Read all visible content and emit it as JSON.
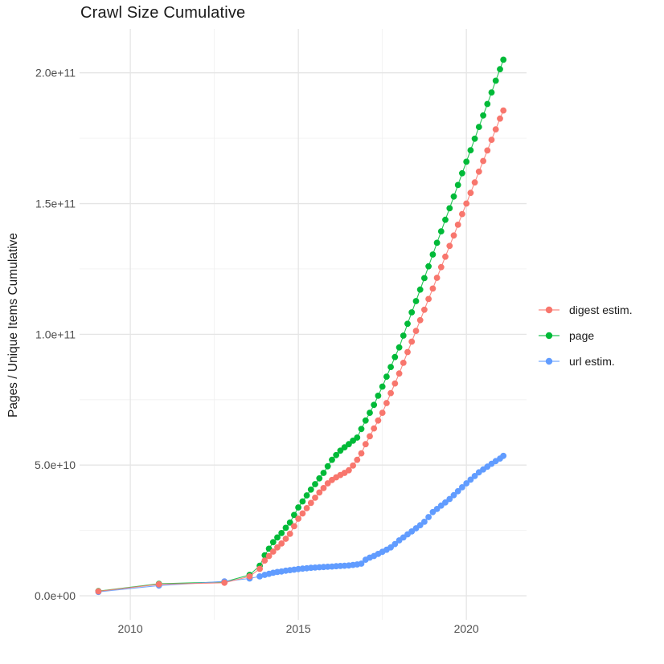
{
  "chart_data": {
    "type": "scatter",
    "title": "Crawl Size Cumulative",
    "subtitle": "",
    "xlabel": "",
    "ylabel": "Pages / Unique Items Cumulative",
    "grid": true,
    "legend_position": "right",
    "background": "#FFFFFF",
    "grid_major_color": "#E5E5E5",
    "grid_minor_color": "#F0F0F0",
    "tick_label_color": "#4D4D4D",
    "xlim": [
      2008.49,
      2021.79
    ],
    "ylim_billions": [
      -9.2,
      216.8
    ],
    "y_unit": "1e9 (values stored in billions)",
    "x_ticks": {
      "major": [
        2010,
        2015,
        2020
      ],
      "minor": [
        2012.5,
        2017.5
      ],
      "labels": [
        "2010",
        "2015",
        "2020"
      ]
    },
    "y_ticks": {
      "major_billions": [
        0,
        50,
        100,
        150,
        200
      ],
      "minor_billions": [
        25,
        75,
        125,
        175
      ],
      "labels": [
        "0.0e+00",
        "5.0e+10",
        "1.0e+11",
        "1.5e+11",
        "2.0e+11"
      ]
    },
    "series": [
      {
        "name": "digest estim.",
        "color": "#F8766D",
        "points_year_billions": [
          [
            2009.05,
            1.7
          ],
          [
            2010.85,
            4.4
          ],
          [
            2012.8,
            5.0
          ],
          [
            2013.55,
            7.4
          ],
          [
            2013.85,
            10.3
          ],
          [
            2014,
            13.5
          ],
          [
            2014.125,
            15.2
          ],
          [
            2014.25,
            16.9
          ],
          [
            2014.375,
            18.5
          ],
          [
            2014.5,
            20
          ],
          [
            2014.625,
            21.8
          ],
          [
            2014.75,
            23.7
          ],
          [
            2014.875,
            26.6
          ],
          [
            2015,
            29.5
          ],
          [
            2015.125,
            31.5
          ],
          [
            2015.25,
            33.5
          ],
          [
            2015.375,
            35.5
          ],
          [
            2015.5,
            37.5
          ],
          [
            2015.625,
            39.5
          ],
          [
            2015.75,
            41.2
          ],
          [
            2015.875,
            43
          ],
          [
            2016,
            44.3
          ],
          [
            2016.125,
            45.3
          ],
          [
            2016.25,
            46.2
          ],
          [
            2016.375,
            47
          ],
          [
            2016.5,
            48
          ],
          [
            2016.625,
            49.8
          ],
          [
            2016.75,
            52
          ],
          [
            2016.875,
            54.5
          ],
          [
            2017,
            58
          ],
          [
            2017.125,
            61
          ],
          [
            2017.25,
            64
          ],
          [
            2017.375,
            67
          ],
          [
            2017.5,
            70
          ],
          [
            2017.625,
            73.7
          ],
          [
            2017.75,
            77.5
          ],
          [
            2017.875,
            81.2
          ],
          [
            2018,
            85
          ],
          [
            2018.125,
            89.1
          ],
          [
            2018.25,
            93.2
          ],
          [
            2018.375,
            97.2
          ],
          [
            2018.5,
            101.3
          ],
          [
            2018.625,
            105.4
          ],
          [
            2018.75,
            109.4
          ],
          [
            2018.875,
            113.5
          ],
          [
            2019,
            117.5
          ],
          [
            2019.125,
            121.6
          ],
          [
            2019.25,
            125.7
          ],
          [
            2019.375,
            129.7
          ],
          [
            2019.5,
            133.8
          ],
          [
            2019.625,
            137.8
          ],
          [
            2019.75,
            141.9
          ],
          [
            2019.875,
            146
          ],
          [
            2020,
            150
          ],
          [
            2020.125,
            154.1
          ],
          [
            2020.25,
            158.1
          ],
          [
            2020.375,
            162.2
          ],
          [
            2020.5,
            166.3
          ],
          [
            2020.625,
            170.3
          ],
          [
            2020.75,
            174.4
          ],
          [
            2020.875,
            178.4
          ],
          [
            2021,
            182.5
          ],
          [
            2021.1,
            185.6
          ]
        ]
      },
      {
        "name": "page",
        "color": "#00BA38",
        "points_year_billions": [
          [
            2009.05,
            1.8
          ],
          [
            2010.85,
            4.6
          ],
          [
            2012.8,
            5.3
          ],
          [
            2013.55,
            8.0
          ],
          [
            2013.85,
            11.5
          ],
          [
            2014,
            15.5
          ],
          [
            2014.125,
            18
          ],
          [
            2014.25,
            20.5
          ],
          [
            2014.375,
            22.3
          ],
          [
            2014.5,
            24
          ],
          [
            2014.625,
            26
          ],
          [
            2014.75,
            28
          ],
          [
            2014.875,
            30.9
          ],
          [
            2015,
            33.8
          ],
          [
            2015.125,
            36.1
          ],
          [
            2015.25,
            38.4
          ],
          [
            2015.375,
            40.6
          ],
          [
            2015.5,
            42.7
          ],
          [
            2015.625,
            44.9
          ],
          [
            2015.75,
            47
          ],
          [
            2015.875,
            49.5
          ],
          [
            2016,
            52
          ],
          [
            2016.125,
            53.8
          ],
          [
            2016.25,
            55.5
          ],
          [
            2016.375,
            56.8
          ],
          [
            2016.5,
            58
          ],
          [
            2016.625,
            59.3
          ],
          [
            2016.75,
            60.5
          ],
          [
            2016.875,
            63.8
          ],
          [
            2017,
            67
          ],
          [
            2017.125,
            70
          ],
          [
            2017.25,
            73
          ],
          [
            2017.375,
            76.5
          ],
          [
            2017.5,
            80
          ],
          [
            2017.625,
            83.8
          ],
          [
            2017.75,
            87.5
          ],
          [
            2017.875,
            91.3
          ],
          [
            2018,
            95
          ],
          [
            2018.125,
            99.5
          ],
          [
            2018.25,
            104
          ],
          [
            2018.375,
            108.4
          ],
          [
            2018.5,
            112.7
          ],
          [
            2018.625,
            117.1
          ],
          [
            2018.75,
            121.5
          ],
          [
            2018.875,
            126
          ],
          [
            2019,
            130.5
          ],
          [
            2019.125,
            135
          ],
          [
            2019.25,
            139.4
          ],
          [
            2019.375,
            143.8
          ],
          [
            2019.5,
            148.2
          ],
          [
            2019.625,
            152.7
          ],
          [
            2019.75,
            157.1
          ],
          [
            2019.875,
            161.6
          ],
          [
            2020,
            166
          ],
          [
            2020.125,
            170.4
          ],
          [
            2020.25,
            174.8
          ],
          [
            2020.375,
            179.3
          ],
          [
            2020.5,
            183.7
          ],
          [
            2020.625,
            188.1
          ],
          [
            2020.75,
            192.5
          ],
          [
            2020.875,
            197
          ],
          [
            2021,
            201.4
          ],
          [
            2021.1,
            205
          ]
        ]
      },
      {
        "name": "url estim.",
        "color": "#619CFF",
        "points_year_billions": [
          [
            2009.05,
            1.5
          ],
          [
            2010.85,
            3.9
          ],
          [
            2012.8,
            5.5
          ],
          [
            2013.55,
            6.6
          ],
          [
            2013.85,
            7.4
          ],
          [
            2014,
            8
          ],
          [
            2014.125,
            8.4
          ],
          [
            2014.25,
            8.8
          ],
          [
            2014.375,
            9.1
          ],
          [
            2014.5,
            9.3
          ],
          [
            2014.625,
            9.6
          ],
          [
            2014.75,
            9.8
          ],
          [
            2014.875,
            10
          ],
          [
            2015,
            10.2
          ],
          [
            2015.125,
            10.4
          ],
          [
            2015.25,
            10.5
          ],
          [
            2015.375,
            10.7
          ],
          [
            2015.5,
            10.8
          ],
          [
            2015.625,
            10.9
          ],
          [
            2015.75,
            11
          ],
          [
            2015.875,
            11.1
          ],
          [
            2016,
            11.2
          ],
          [
            2016.125,
            11.3
          ],
          [
            2016.25,
            11.4
          ],
          [
            2016.375,
            11.5
          ],
          [
            2016.5,
            11.6
          ],
          [
            2016.625,
            11.8
          ],
          [
            2016.75,
            12
          ],
          [
            2016.875,
            12.3
          ],
          [
            2017,
            13.8
          ],
          [
            2017.125,
            14.6
          ],
          [
            2017.25,
            15.2
          ],
          [
            2017.375,
            16
          ],
          [
            2017.5,
            16.8
          ],
          [
            2017.625,
            17.6
          ],
          [
            2017.75,
            18.5
          ],
          [
            2017.875,
            19.8
          ],
          [
            2018,
            21.2
          ],
          [
            2018.125,
            22.3
          ],
          [
            2018.25,
            23.5
          ],
          [
            2018.375,
            24.6
          ],
          [
            2018.5,
            25.8
          ],
          [
            2018.625,
            27
          ],
          [
            2018.75,
            28.3
          ],
          [
            2018.875,
            30.1
          ],
          [
            2019,
            32
          ],
          [
            2019.125,
            33.2
          ],
          [
            2019.25,
            34.5
          ],
          [
            2019.375,
            35.7
          ],
          [
            2019.5,
            37
          ],
          [
            2019.625,
            38.5
          ],
          [
            2019.75,
            40
          ],
          [
            2019.875,
            41.5
          ],
          [
            2020,
            43
          ],
          [
            2020.125,
            44.4
          ],
          [
            2020.25,
            45.8
          ],
          [
            2020.375,
            47.2
          ],
          [
            2020.5,
            48.3
          ],
          [
            2020.625,
            49.4
          ],
          [
            2020.75,
            50.5
          ],
          [
            2020.875,
            51.5
          ],
          [
            2021,
            52.5
          ],
          [
            2021.1,
            53.5
          ]
        ]
      }
    ]
  }
}
